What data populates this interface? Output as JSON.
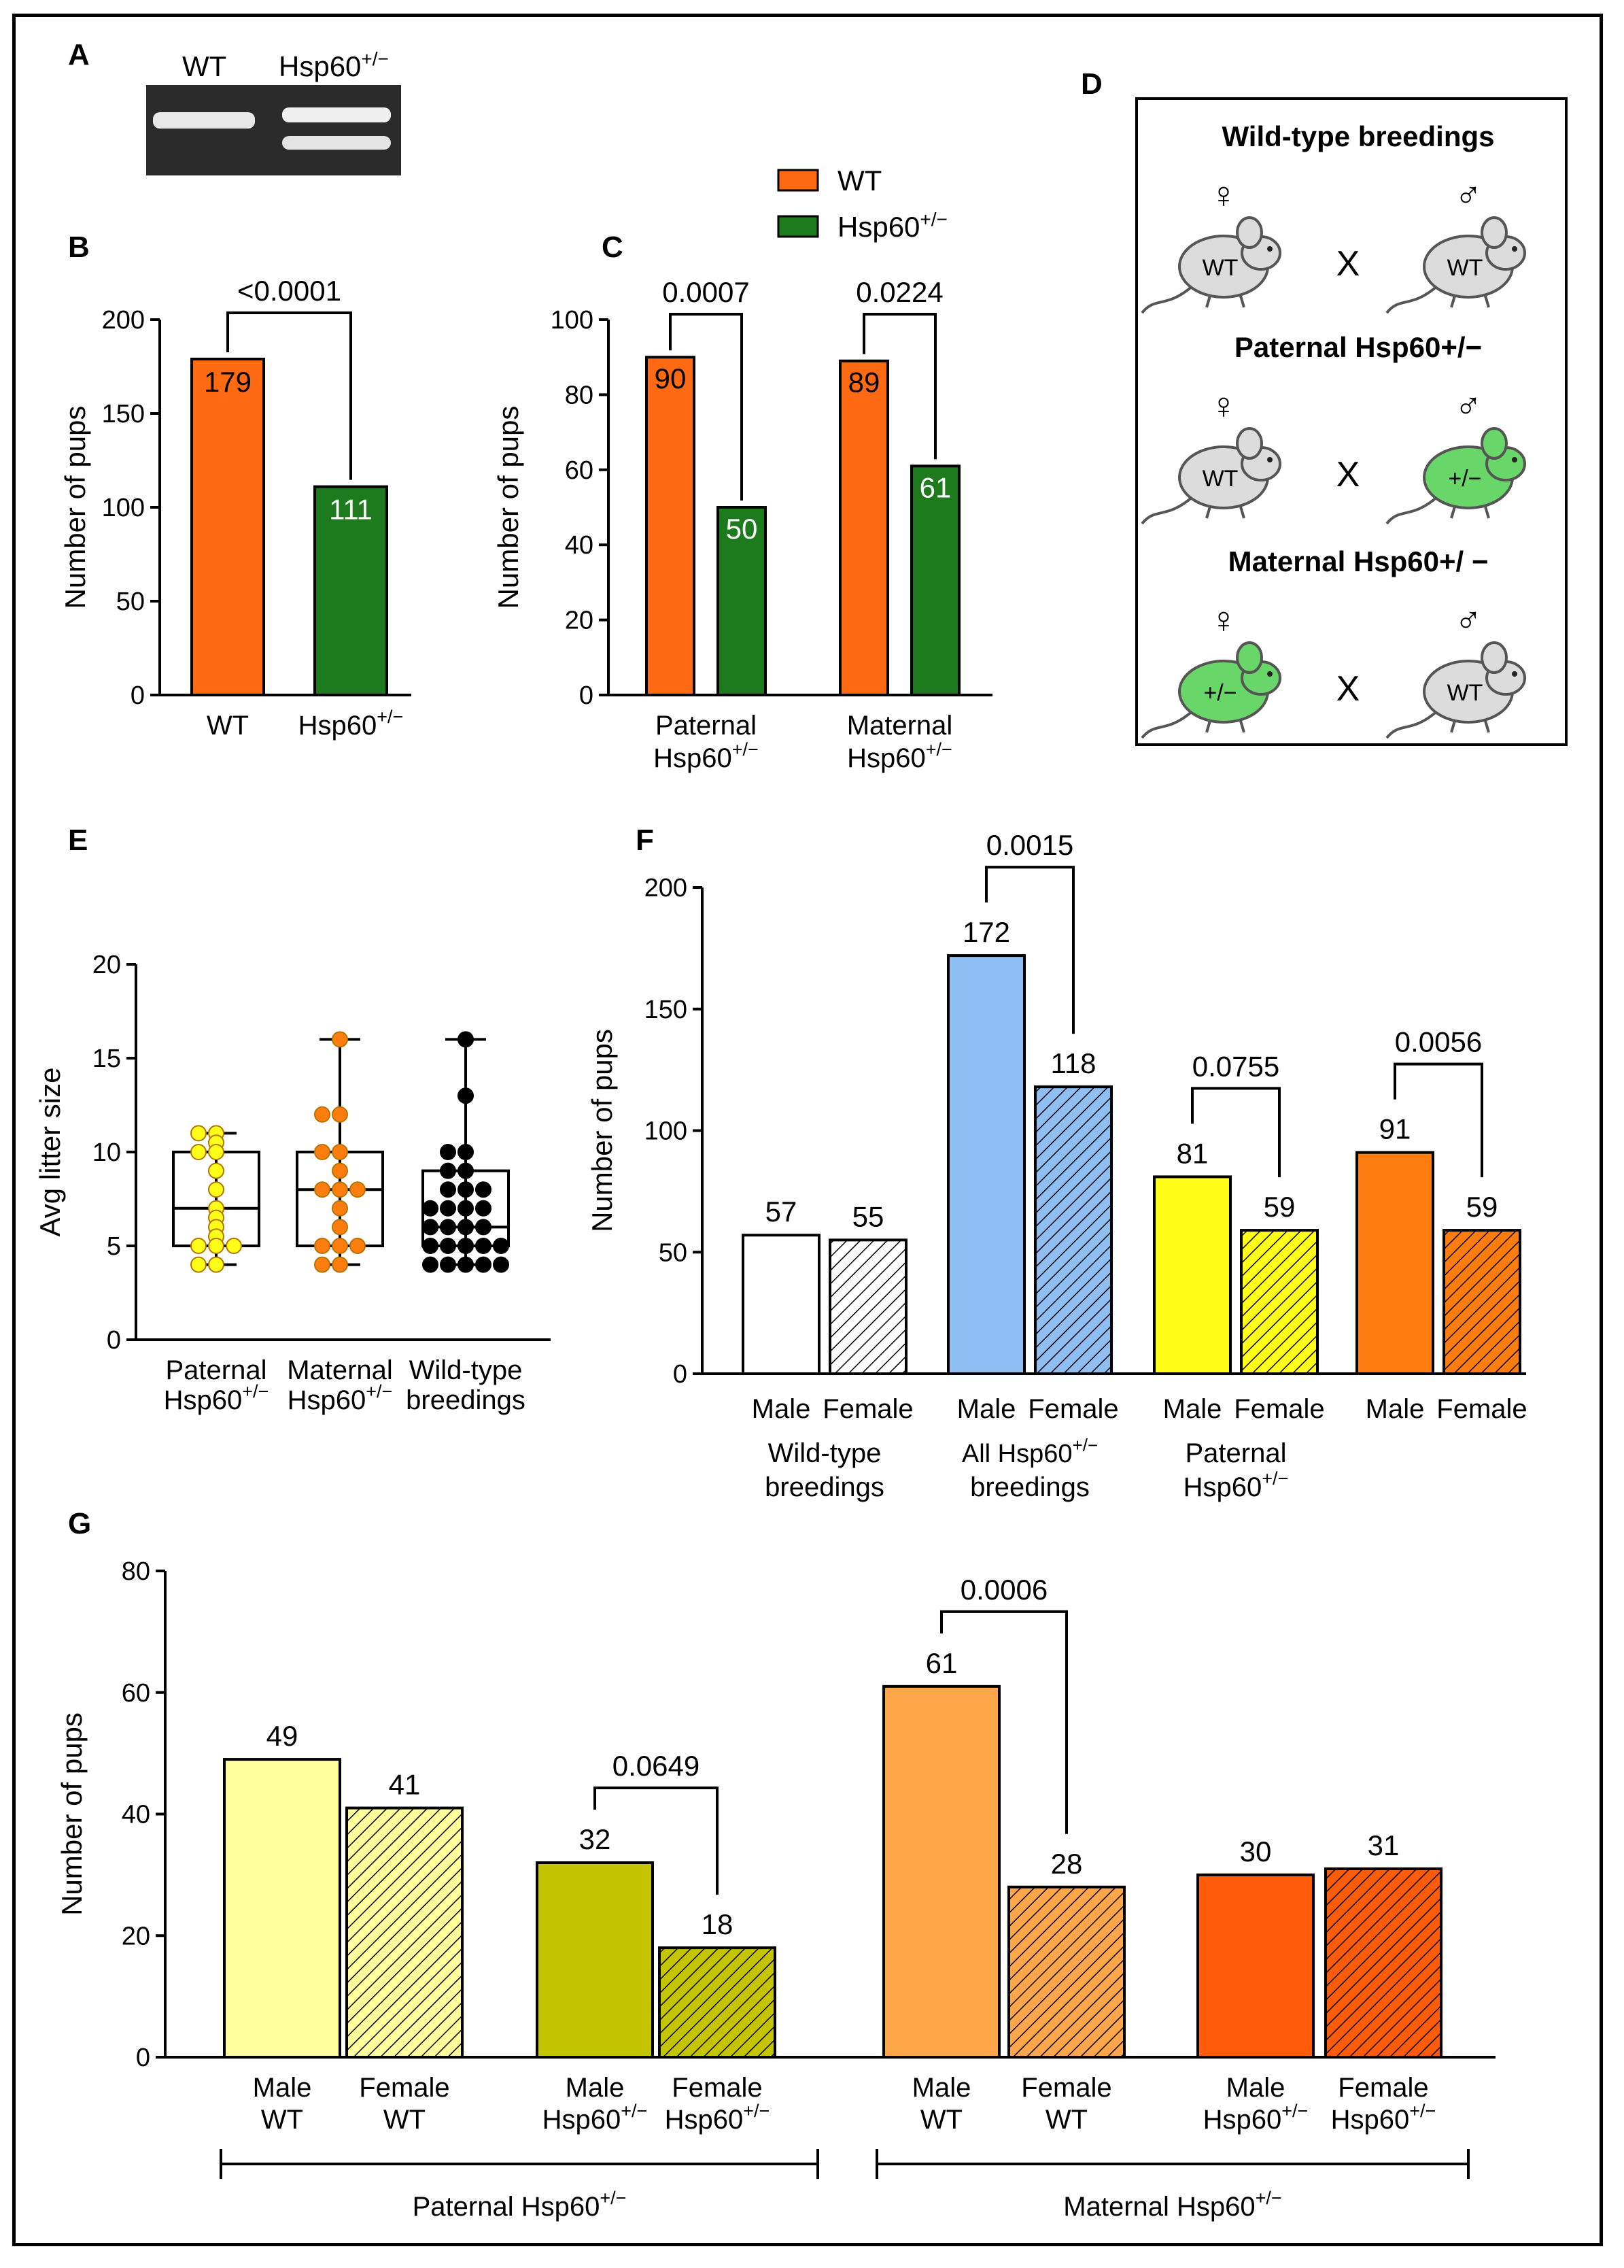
{
  "panel_letters": {
    "a": "A",
    "b": "B",
    "c": "C",
    "d": "D",
    "e": "E",
    "f": "F",
    "g": "G"
  },
  "colors": {
    "wt": "#ff6a13",
    "het": "#1d7a1d",
    "wt_light": "#8fbff2",
    "yellow": "#ffff1a",
    "orange": "#ff7d0f",
    "pale_yellow": "#ffff9c",
    "olive": "#c4c400",
    "light_orange": "#ffa54a",
    "dark_orange": "#ff5c0a",
    "mouse_grey": "#dcdcdc",
    "mouse_green": "#69d669"
  },
  "gel": {
    "lane1": "WT",
    "lane2_base": "Hsp60",
    "lane2_sup": "+/−"
  },
  "legend": {
    "wt": "WT",
    "het_base": "Hsp60",
    "het_sup": "+/−"
  },
  "chart_data": [
    {
      "panel": "B",
      "type": "bar",
      "categories": [
        "WT",
        "Hsp60+/−"
      ],
      "category_bases": [
        "WT",
        "Hsp60"
      ],
      "category_sups": [
        "",
        "+/−"
      ],
      "values": [
        179,
        111
      ],
      "value_labels": [
        "179",
        "111"
      ],
      "ylabel": "Number of pups",
      "ylim": [
        0,
        200
      ],
      "yticks": [
        "0",
        "50",
        "100",
        "150",
        "200"
      ],
      "pvalue": "<0.0001"
    },
    {
      "panel": "C",
      "type": "bar",
      "groups": [
        {
          "line1": "Paternal",
          "line2_base": "Hsp60",
          "line2_sup": "+/−",
          "wt": 90,
          "het": 50,
          "wt_label": "90",
          "het_label": "50",
          "p": "0.0007"
        },
        {
          "line1": "Maternal",
          "line2_base": "Hsp60",
          "line2_sup": "+/−",
          "wt": 89,
          "het": 61,
          "wt_label": "89",
          "het_label": "61",
          "p": "0.0224"
        }
      ],
      "series": [
        {
          "name": "WT",
          "values": [
            90,
            89
          ]
        },
        {
          "name": "Hsp60+/−",
          "values": [
            50,
            61
          ]
        }
      ],
      "ylabel": "Number of pups",
      "ylim": [
        0,
        100
      ],
      "yticks": [
        "0",
        "20",
        "40",
        "60",
        "80",
        "100"
      ]
    },
    {
      "panel": "E",
      "type": "scatter",
      "ylabel": "Avg litter size",
      "ylim": [
        0,
        20
      ],
      "yticks": [
        "0",
        "5",
        "10",
        "15",
        "20"
      ],
      "groups": [
        {
          "line1": "Paternal",
          "line2_base": "Hsp60",
          "line2_sup": "+/−",
          "points": [
            11,
            11,
            10.5,
            10,
            10,
            9,
            8,
            7,
            6.5,
            6,
            5.5,
            5,
            5,
            5,
            4,
            4
          ],
          "box": [
            4,
            5,
            7,
            10,
            11
          ]
        },
        {
          "line1": "Maternal",
          "line2_base": "Hsp60",
          "line2_sup": "+/−",
          "points": [
            16,
            12,
            12,
            10,
            10,
            9,
            8,
            8,
            8,
            7,
            6,
            5,
            5,
            5,
            4,
            4
          ],
          "box": [
            4,
            5,
            8,
            10,
            16
          ]
        },
        {
          "line1": "Wild-type",
          "line2_base": "breedings",
          "line2_sup": "",
          "points": [
            16,
            13,
            10,
            10,
            9,
            9,
            8,
            8,
            8,
            7,
            7,
            7,
            7,
            6,
            6,
            6,
            6,
            5,
            5,
            5,
            5,
            5,
            4,
            4,
            4,
            4,
            4
          ],
          "box": [
            4,
            5,
            6,
            9,
            16
          ]
        }
      ]
    },
    {
      "panel": "F",
      "type": "bar",
      "ylabel": "Number of pups",
      "ylim": [
        0,
        200
      ],
      "yticks": [
        "0",
        "50",
        "100",
        "150",
        "200"
      ],
      "groups": [
        {
          "line1": "Wild-type",
          "line2_base": "breedings",
          "line2_sup": "",
          "male": 57,
          "female": 55,
          "male_label": "57",
          "female_label": "55",
          "p": "",
          "mcolor": "#ffffff"
        },
        {
          "line1_base": "All Hsp60",
          "line1_sup": "+/−",
          "line2_base": "breedings",
          "line2_sup": "",
          "male": 172,
          "female": 118,
          "male_label": "172",
          "female_label": "118",
          "p": "0.0015",
          "mcolor": "#8fbff2"
        },
        {
          "line1": "Paternal",
          "line2_base": "Hsp60",
          "line2_sup": "+/−",
          "male": 81,
          "female": 59,
          "male_label": "81",
          "female_label": "59",
          "p": "0.0755",
          "mcolor": "#ffff1a"
        },
        {
          "line1": "",
          "line2_base": "",
          "line2_sup": "",
          "male": 91,
          "female": 59,
          "male_label": "91",
          "female_label": "59",
          "p": "0.0056",
          "mcolor": "#ff7d0f"
        }
      ],
      "sex_labels": [
        "Male",
        "Female"
      ]
    },
    {
      "panel": "G",
      "type": "bar",
      "ylabel": "Number of pups",
      "ylim": [
        0,
        80
      ],
      "yticks": [
        "0",
        "20",
        "40",
        "60",
        "80"
      ],
      "bars": [
        {
          "line1": "Male",
          "line2_base": "WT",
          "line2_sup": "",
          "value": 49,
          "label": "49",
          "color": "#ffff9c",
          "hatch": false
        },
        {
          "line1": "Female",
          "line2_base": "WT",
          "line2_sup": "",
          "value": 41,
          "label": "41",
          "color": "#ffff9c",
          "hatch": true
        },
        {
          "line1": "Male",
          "line2_base": "Hsp60",
          "line2_sup": "+/−",
          "value": 32,
          "label": "32",
          "color": "#c4c400",
          "hatch": false
        },
        {
          "line1": "Female",
          "line2_base": "Hsp60",
          "line2_sup": "+/−",
          "value": 18,
          "label": "18",
          "color": "#c4c400",
          "hatch": true
        },
        {
          "line1": "Male",
          "line2_base": "WT",
          "line2_sup": "",
          "value": 61,
          "label": "61",
          "color": "#ffa54a",
          "hatch": false
        },
        {
          "line1": "Female",
          "line2_base": "WT",
          "line2_sup": "",
          "value": 28,
          "label": "28",
          "color": "#ffa54a",
          "hatch": true
        },
        {
          "line1": "Male",
          "line2_base": "Hsp60",
          "line2_sup": "+/−",
          "value": 30,
          "label": "30",
          "color": "#ff5c0a",
          "hatch": false
        },
        {
          "line1": "Female",
          "line2_base": "Hsp60",
          "line2_sup": "+/−",
          "value": 31,
          "label": "31",
          "color": "#ff5c0a",
          "hatch": true
        }
      ],
      "pvalues": [
        {
          "from": 2,
          "to": 3,
          "p": "0.0649"
        },
        {
          "from": 4,
          "to": 5,
          "p": "0.0006"
        }
      ],
      "brackets": [
        {
          "base": "Paternal Hsp60",
          "sup": "+/−"
        },
        {
          "base": "Maternal Hsp60",
          "sup": "+/−"
        }
      ]
    }
  ],
  "diagram": {
    "rows": [
      {
        "title": "Wild-type breedings",
        "female": "WT",
        "male": "WT",
        "female_het": false,
        "male_het": false
      },
      {
        "title": "Paternal Hsp60+/−",
        "female": "WT",
        "male": "+/−",
        "female_het": false,
        "male_het": true
      },
      {
        "title": "Maternal Hsp60+/ −",
        "female": "+/−",
        "male": "WT",
        "female_het": true,
        "male_het": false
      }
    ],
    "female_symbol": "♀",
    "male_symbol": "♂",
    "cross": "X"
  }
}
